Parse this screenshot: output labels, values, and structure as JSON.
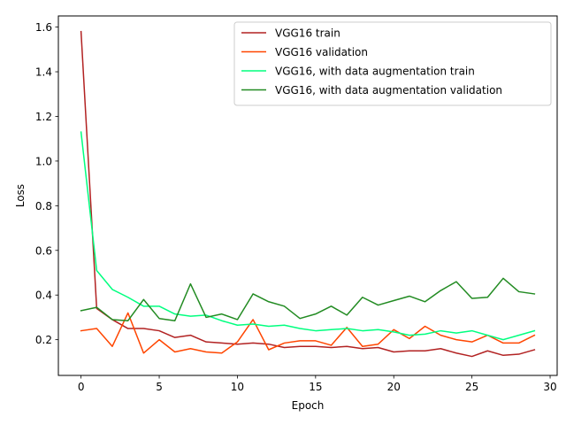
{
  "chart_data": {
    "type": "line",
    "xlabel": "Epoch",
    "ylabel": "Loss",
    "xlim": [
      -1.45,
      30.45
    ],
    "ylim": [
      0.04,
      1.65
    ],
    "x_ticks": [
      0,
      5,
      10,
      15,
      20,
      25,
      30
    ],
    "y_ticks": [
      0.2,
      0.4,
      0.6,
      0.8,
      1.0,
      1.2,
      1.4,
      1.6
    ],
    "x_tick_labels": [
      "0",
      "5",
      "10",
      "15",
      "20",
      "25",
      "30"
    ],
    "y_tick_labels": [
      "0.2",
      "0.4",
      "0.6",
      "0.8",
      "1.0",
      "1.2",
      "1.4",
      "1.6"
    ],
    "legend_position": "top-right",
    "grid": false,
    "x": [
      0,
      1,
      2,
      3,
      4,
      5,
      6,
      7,
      8,
      9,
      10,
      11,
      12,
      13,
      14,
      15,
      16,
      17,
      18,
      19,
      20,
      21,
      22,
      23,
      24,
      25,
      26,
      27,
      28,
      29
    ],
    "series": [
      {
        "name": "VGG16 train",
        "color": "#b22222",
        "values": [
          1.58,
          0.34,
          0.29,
          0.25,
          0.25,
          0.24,
          0.21,
          0.22,
          0.19,
          0.185,
          0.18,
          0.185,
          0.18,
          0.165,
          0.17,
          0.17,
          0.165,
          0.17,
          0.16,
          0.165,
          0.145,
          0.15,
          0.15,
          0.16,
          0.14,
          0.125,
          0.15,
          0.13,
          0.135,
          0.155
        ]
      },
      {
        "name": "VGG16 validation",
        "color": "#ff4500",
        "values": [
          0.24,
          0.25,
          0.17,
          0.32,
          0.14,
          0.2,
          0.145,
          0.16,
          0.145,
          0.14,
          0.19,
          0.29,
          0.155,
          0.185,
          0.195,
          0.195,
          0.175,
          0.255,
          0.17,
          0.18,
          0.245,
          0.205,
          0.26,
          0.22,
          0.2,
          0.19,
          0.22,
          0.185,
          0.185,
          0.22
        ]
      },
      {
        "name": "VGG16, with data augmentation train",
        "color": "#00ff7f",
        "values": [
          1.13,
          0.51,
          0.425,
          0.39,
          0.35,
          0.35,
          0.315,
          0.305,
          0.31,
          0.285,
          0.265,
          0.27,
          0.26,
          0.265,
          0.25,
          0.24,
          0.245,
          0.25,
          0.24,
          0.245,
          0.235,
          0.22,
          0.225,
          0.24,
          0.23,
          0.24,
          0.22,
          0.2,
          0.22,
          0.24
        ]
      },
      {
        "name": "VGG16, with data augmentation validation",
        "color": "#228b22",
        "values": [
          0.33,
          0.345,
          0.29,
          0.285,
          0.38,
          0.295,
          0.285,
          0.45,
          0.3,
          0.315,
          0.29,
          0.405,
          0.37,
          0.35,
          0.295,
          0.315,
          0.35,
          0.31,
          0.39,
          0.355,
          0.375,
          0.395,
          0.37,
          0.42,
          0.46,
          0.385,
          0.39,
          0.475,
          0.415,
          0.405
        ]
      }
    ]
  }
}
